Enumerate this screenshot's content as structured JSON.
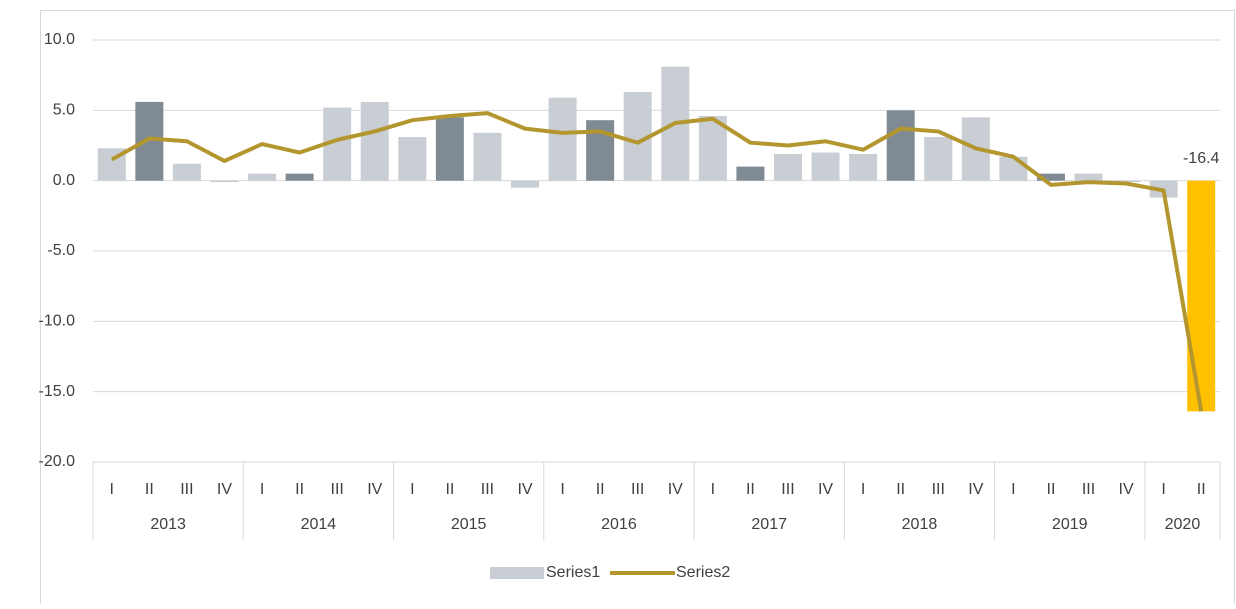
{
  "chart_data": {
    "type": "bar",
    "category_groups": [
      {
        "name": "2013",
        "categories": [
          "I",
          "II",
          "III",
          "IV"
        ]
      },
      {
        "name": "2014",
        "categories": [
          "I",
          "II",
          "III",
          "IV"
        ]
      },
      {
        "name": "2015",
        "categories": [
          "I",
          "II",
          "III",
          "IV"
        ]
      },
      {
        "name": "2016",
        "categories": [
          "I",
          "II",
          "III",
          "IV"
        ]
      },
      {
        "name": "2017",
        "categories": [
          "I",
          "II",
          "III",
          "IV"
        ]
      },
      {
        "name": "2018",
        "categories": [
          "I",
          "II",
          "III",
          "IV"
        ]
      },
      {
        "name": "2019",
        "categories": [
          "I",
          "II",
          "III",
          "IV"
        ]
      },
      {
        "name": "2020",
        "categories": [
          "I",
          "II"
        ]
      }
    ],
    "series": [
      {
        "name": "Series1",
        "type": "bar",
        "color": "#c9ced4",
        "colors": [
          "#c9ced4",
          "#7f8a93",
          "#c9ced4",
          "#c9ced4",
          "#c9ced4",
          "#7f8a93",
          "#c9ced4",
          "#c9ced4",
          "#c9ced4",
          "#7f8a93",
          "#c9ced4",
          "#c9ced4",
          "#c9ced4",
          "#7f8a93",
          "#c9ced4",
          "#c9ced4",
          "#c9ced4",
          "#7f8a93",
          "#c9ced4",
          "#c9ced4",
          "#c9ced4",
          "#7f8a93",
          "#c9ced4",
          "#c9ced4",
          "#c9ced4",
          "#7f8a93",
          "#c9ced4",
          "#c9ced4",
          "#c9ced4",
          "#ffc000"
        ],
        "values": [
          2.3,
          5.6,
          1.2,
          -0.1,
          0.5,
          0.5,
          5.2,
          5.6,
          3.1,
          4.5,
          3.4,
          -0.5,
          5.9,
          4.3,
          6.3,
          8.1,
          4.6,
          1.0,
          1.9,
          2.0,
          1.9,
          5.0,
          3.1,
          4.5,
          1.7,
          0.5,
          0.5,
          -0.1,
          -1.2,
          -16.4
        ],
        "value_labels": [
          null,
          null,
          null,
          null,
          null,
          null,
          null,
          null,
          null,
          null,
          null,
          null,
          null,
          null,
          null,
          null,
          null,
          null,
          null,
          null,
          null,
          null,
          null,
          null,
          null,
          null,
          null,
          null,
          null,
          "-16.4"
        ]
      },
      {
        "name": "Series2",
        "type": "line",
        "color": "#b4962f",
        "values": [
          1.5,
          3.0,
          2.8,
          1.4,
          2.6,
          2.0,
          2.9,
          3.5,
          4.3,
          4.6,
          4.8,
          3.7,
          3.4,
          3.5,
          2.7,
          4.1,
          4.4,
          2.7,
          2.5,
          2.8,
          2.2,
          3.7,
          3.5,
          2.3,
          1.7,
          -0.3,
          -0.1,
          -0.2,
          -0.7,
          -16.4
        ]
      }
    ],
    "ylim": [
      -20,
      10
    ],
    "yticks": [
      {
        "value": -20,
        "label": "-20.0"
      },
      {
        "value": -15,
        "label": "-15.0"
      },
      {
        "value": -10,
        "label": "-10.0"
      },
      {
        "value": -5,
        "label": "-5.0"
      },
      {
        "value": 0,
        "label": "0.0"
      },
      {
        "value": 5,
        "label": "5.0"
      },
      {
        "value": 10,
        "label": "10.0"
      }
    ],
    "grid": true,
    "legend": "bottom"
  }
}
